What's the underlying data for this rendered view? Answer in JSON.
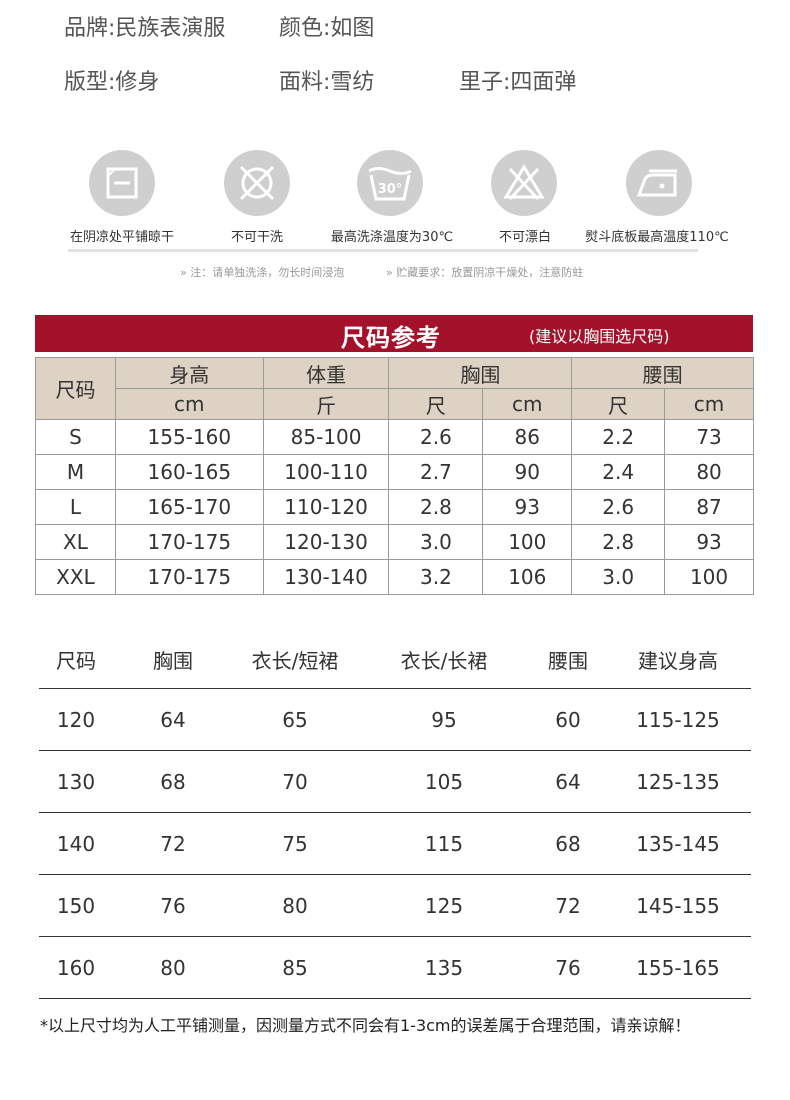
{
  "specs": {
    "brand": "品牌:民族表演服",
    "color": "颜色:如图",
    "fit": "版型:修身",
    "fabric": "面料:雪纺",
    "lining": "里子:四面弹"
  },
  "care": {
    "items": [
      {
        "icon": "dry-flat-shade-icon",
        "label": "在阴凉处平铺晾干"
      },
      {
        "icon": "no-dry-clean-icon",
        "label": "不可干洗"
      },
      {
        "icon": "wash-30-icon",
        "label": "最高洗涤温度为30℃",
        "icon_text": "30°"
      },
      {
        "icon": "no-bleach-icon",
        "label": "不可漂白"
      },
      {
        "icon": "iron-icon",
        "label": "熨斗底板最高温度110℃"
      }
    ],
    "note_left": "» 注：请单独洗涤，勿长时间浸泡",
    "note_right": "» 贮藏要求：放置阴凉干燥处，注意防蛀"
  },
  "banner": {
    "title": "尺码参考",
    "subtitle": "(建议以胸围选尺码)",
    "color": "#a3112a"
  },
  "size_table": {
    "headers": {
      "size": "尺码",
      "height": "身高",
      "weight": "体重",
      "chest": "胸围",
      "waist": "腰围",
      "height_unit": "cm",
      "weight_unit": "斤",
      "chest_unit_1": "尺",
      "chest_unit_2": "cm",
      "waist_unit_1": "尺",
      "waist_unit_2": "cm"
    },
    "rows": [
      [
        "S",
        "155-160",
        "85-100",
        "2.6",
        "86",
        "2.2",
        "73"
      ],
      [
        "M",
        "160-165",
        "100-110",
        "2.7",
        "90",
        "2.4",
        "80"
      ],
      [
        "L",
        "165-170",
        "110-120",
        "2.8",
        "93",
        "2.6",
        "87"
      ],
      [
        "XL",
        "170-175",
        "120-130",
        "3.0",
        "100",
        "2.8",
        "93"
      ],
      [
        "XXL",
        "170-175",
        "130-140",
        "3.2",
        "106",
        "3.0",
        "100"
      ]
    ]
  },
  "kids_table": {
    "headers": [
      "尺码",
      "胸围",
      "衣长/短裙",
      "衣长/长裙",
      "腰围",
      "建议身高"
    ],
    "rows": [
      [
        "120",
        "64",
        "65",
        "95",
        "60",
        "115-125"
      ],
      [
        "130",
        "68",
        "70",
        "105",
        "64",
        "125-135"
      ],
      [
        "140",
        "72",
        "75",
        "115",
        "68",
        "135-145"
      ],
      [
        "150",
        "76",
        "80",
        "125",
        "72",
        "145-155"
      ],
      [
        "160",
        "80",
        "85",
        "135",
        "76",
        "155-165"
      ]
    ]
  },
  "footnote": "*以上尺寸均为人工平铺测量，因测量方式不同会有1-3cm的误差属于合理范围，请亲谅解！"
}
